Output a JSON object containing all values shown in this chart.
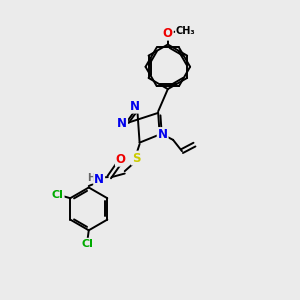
{
  "bg_color": "#ebebeb",
  "bond_color": "#000000",
  "bond_width": 1.4,
  "atom_colors": {
    "N": "#0000ee",
    "O": "#ee0000",
    "S": "#cccc00",
    "Cl": "#00aa00",
    "C": "#000000",
    "H": "#666666"
  },
  "font_size": 8.5
}
